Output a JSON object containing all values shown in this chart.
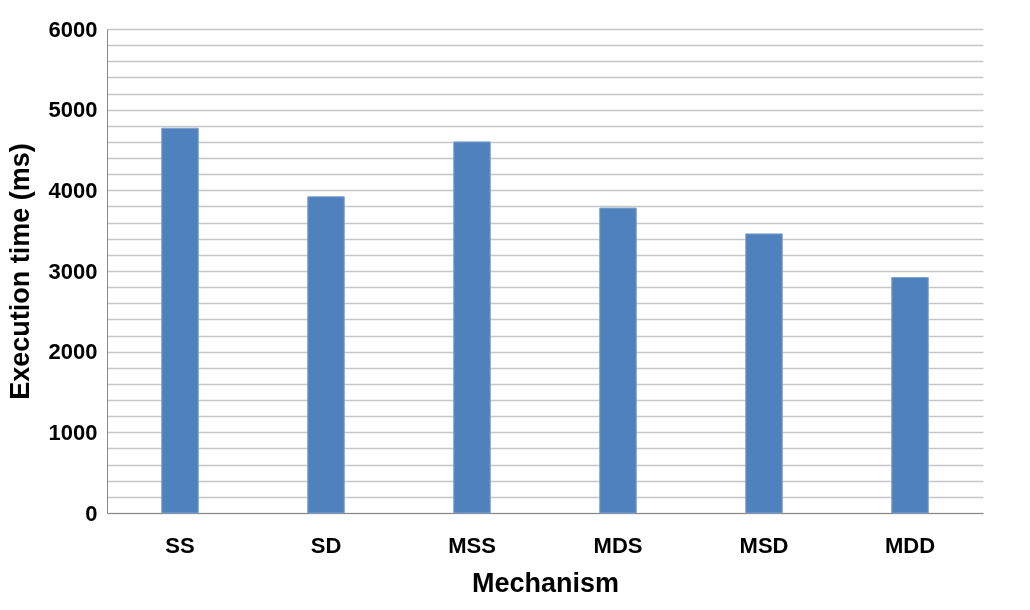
{
  "chart_data": {
    "type": "bar",
    "xlabel": "Mechanism",
    "ylabel": "Execution time (ms)",
    "categories": [
      "SS",
      "SD",
      "MSS",
      "MDS",
      "MSD",
      "MDD"
    ],
    "values": [
      4770,
      3920,
      4600,
      3780,
      3460,
      2920
    ],
    "color": "#4f81bd",
    "ylim": [
      0,
      6000
    ],
    "yticks": [
      0,
      {
        "value": 200,
        "label": null
      },
      {
        "value": 400,
        "label": null
      },
      {
        "value": 600,
        "label": null
      },
      {
        "value": 800,
        "label": null
      },
      1000,
      {
        "value": 1200,
        "label": null
      },
      {
        "value": 1400,
        "label": null
      },
      {
        "value": 1600,
        "label": null
      },
      {
        "value": 1800,
        "label": null
      },
      2000,
      {
        "value": 2200,
        "label": null
      },
      {
        "value": 2400,
        "label": null
      },
      {
        "value": 2600,
        "label": null
      },
      {
        "value": 2800,
        "label": null
      },
      3000,
      {
        "value": 3200,
        "label": null
      },
      {
        "value": 3400,
        "label": null
      },
      {
        "value": 3600,
        "label": null
      },
      {
        "value": 3800,
        "label": null
      },
      4000,
      {
        "value": 4200,
        "label": null
      },
      {
        "value": 4400,
        "label": null
      },
      {
        "value": 4600,
        "label": null
      },
      {
        "value": 4800,
        "label": null
      },
      5000,
      {
        "value": 5200,
        "label": null
      },
      {
        "value": 5400,
        "label": null
      },
      {
        "value": 5600,
        "label": null
      },
      {
        "value": 5800,
        "label": null
      },
      6000
    ],
    "grid": "y"
  }
}
